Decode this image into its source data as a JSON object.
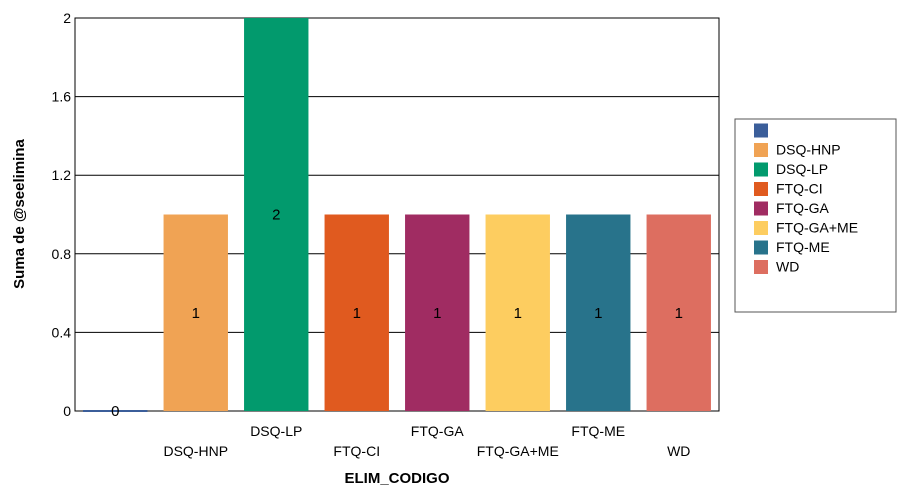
{
  "chart_data": {
    "type": "bar",
    "title": "",
    "xlabel": "ELIM_CODIGO",
    "ylabel": "Suma de @seelimina",
    "ylim": [
      0,
      2
    ],
    "yticks": [
      "0",
      "0.4",
      "0.8",
      "1.2",
      "1.6",
      "2"
    ],
    "grid": true,
    "legend_position": "right",
    "categories": [
      "",
      "DSQ-HNP",
      "DSQ-LP",
      "FTQ-CI",
      "FTQ-GA",
      "FTQ-GA+ME",
      "FTQ-ME",
      "WD"
    ],
    "values": [
      0,
      1,
      2,
      1,
      1,
      1,
      1,
      1
    ],
    "data_labels": [
      "0",
      "1",
      "2",
      "1",
      "1",
      "1",
      "1",
      "1"
    ],
    "colors": [
      "#3b5e9a",
      "#f0a354",
      "#029a6d",
      "#e05a1f",
      "#a02c62",
      "#fdcd60",
      "#28738b",
      "#dd6e60"
    ],
    "legend": [
      "",
      "DSQ-HNP",
      "DSQ-LP",
      "FTQ-CI",
      "FTQ-GA",
      "FTQ-GA+ME",
      "FTQ-ME",
      "WD"
    ]
  }
}
